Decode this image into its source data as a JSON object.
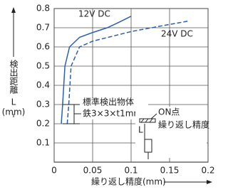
{
  "chart_data": {
    "type": "line",
    "ylabel": [
      "検出距離",
      "L",
      "(mm)"
    ],
    "xlabel": "繰り返し精度(mm)",
    "annotations": [
      "12V DC",
      "24V DC",
      "標準検出物体",
      "鉄3×3×t1mm",
      "ON点",
      "繰り返し精度",
      "L"
    ],
    "xlim": [
      0,
      0.2
    ],
    "xticks": [
      0,
      0.05,
      0.1,
      0.15,
      0.2
    ],
    "ylim": [
      0,
      0.8
    ],
    "yticks": [
      0.1,
      0.2,
      0.3,
      0.4,
      0.5,
      0.6,
      0.7,
      0.8
    ],
    "grid": true,
    "series": [
      {
        "name": "12V DC",
        "color": "#2b5fb0",
        "dash": false,
        "x": [
          0.0093,
          0.011,
          0.014,
          0.02,
          0.033,
          0.05,
          0.069,
          0.085,
          0.1
        ],
        "values": [
          0.2,
          0.3,
          0.5,
          0.6,
          0.65,
          0.675,
          0.7,
          0.73,
          0.76
        ]
      },
      {
        "name": "24V DC",
        "color": "#2b5fb0",
        "dash": true,
        "x": [
          0.017,
          0.019,
          0.022,
          0.033,
          0.05,
          0.08,
          0.1,
          0.14,
          0.175
        ],
        "values": [
          0.2,
          0.3,
          0.5,
          0.6,
          0.63,
          0.66,
          0.68,
          0.71,
          0.735
        ]
      }
    ]
  }
}
